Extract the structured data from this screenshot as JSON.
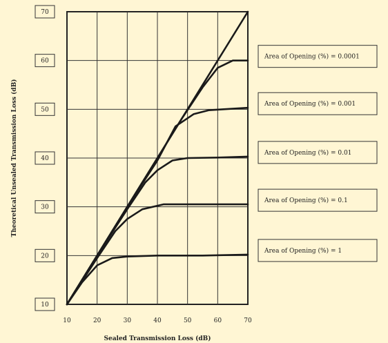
{
  "chart_data": {
    "type": "line",
    "xlabel": "Sealed Transmission Loss (dB)",
    "ylabel": "Theoretical Unsealed Transmission Loss (dB)",
    "xlim": [
      10,
      70
    ],
    "ylim": [
      10,
      70
    ],
    "xticks": [
      "10",
      "20",
      "30",
      "40",
      "50",
      "60",
      "70"
    ],
    "yticks": [
      "10",
      "20",
      "30",
      "40",
      "50",
      "60",
      "70"
    ],
    "grid": true,
    "series": [
      {
        "name": "",
        "x": [
          10,
          70
        ],
        "y": [
          10,
          70
        ]
      },
      {
        "name": "Area of Opening (%) = 0.0001",
        "x": [
          10,
          20,
          30,
          40,
          48,
          55,
          60,
          65,
          70
        ],
        "y": [
          10,
          20,
          30,
          40,
          48,
          54.5,
          58.5,
          60,
          60
        ]
      },
      {
        "name": "Area of Opening (%) = 0.001",
        "x": [
          10,
          20,
          30,
          40,
          46,
          52,
          57,
          62,
          70
        ],
        "y": [
          10,
          20,
          30,
          39.5,
          46.5,
          49,
          49.8,
          50,
          50.3
        ]
      },
      {
        "name": "Area of Opening (%) = 0.01",
        "x": [
          10,
          20,
          30,
          36,
          40,
          45,
          50,
          60,
          70
        ],
        "y": [
          10,
          20,
          29.5,
          35,
          37.5,
          39.5,
          40,
          40.1,
          40.3
        ]
      },
      {
        "name": "Area of Opening (%) = 0.1",
        "x": [
          10,
          20,
          26,
          30,
          35,
          42,
          50,
          70
        ],
        "y": [
          10,
          19.5,
          25,
          27.5,
          29.5,
          30.5,
          30.5,
          30.5
        ]
      },
      {
        "name": "Area of Opening (%) = 1",
        "x": [
          10,
          15,
          20,
          25,
          30,
          40,
          55,
          70
        ],
        "y": [
          10,
          14.5,
          18,
          19.5,
          19.8,
          20,
          20,
          20.2
        ]
      }
    ]
  }
}
